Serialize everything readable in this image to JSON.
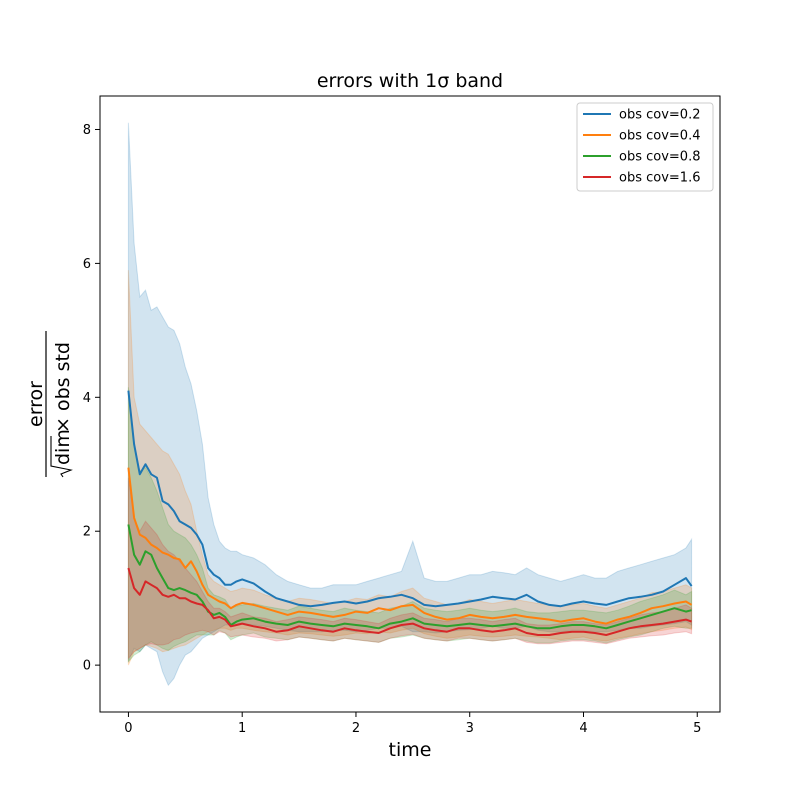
{
  "chart_data": {
    "type": "line",
    "title": "errors with 1σ band",
    "xlabel": "time",
    "ylabel": {
      "numerator": "error",
      "denominator_root": "dim",
      "denominator_rest": "× obs std"
    },
    "xlim": [
      -0.25,
      5.2
    ],
    "ylim": [
      -0.7,
      8.5
    ],
    "xticks": [
      0,
      1,
      2,
      3,
      4,
      5
    ],
    "yticks": [
      0,
      2,
      4,
      6,
      8
    ],
    "grid": false,
    "legend": "top-right",
    "x": [
      0.0,
      0.05,
      0.1,
      0.15,
      0.2,
      0.25,
      0.3,
      0.35,
      0.4,
      0.45,
      0.5,
      0.55,
      0.6,
      0.65,
      0.7,
      0.75,
      0.8,
      0.85,
      0.9,
      0.95,
      1.0,
      1.1,
      1.2,
      1.3,
      1.4,
      1.5,
      1.6,
      1.7,
      1.8,
      1.9,
      2.0,
      2.1,
      2.2,
      2.3,
      2.4,
      2.5,
      2.6,
      2.7,
      2.8,
      2.9,
      3.0,
      3.1,
      3.2,
      3.3,
      3.4,
      3.5,
      3.6,
      3.7,
      3.8,
      3.9,
      4.0,
      4.1,
      4.2,
      4.3,
      4.4,
      4.5,
      4.6,
      4.7,
      4.8,
      4.9,
      4.95
    ],
    "series": [
      {
        "name": "obs cov=0.2",
        "color": "#1f77b4",
        "values": [
          4.1,
          3.3,
          2.85,
          3.0,
          2.85,
          2.8,
          2.45,
          2.4,
          2.3,
          2.15,
          2.1,
          2.05,
          1.95,
          1.8,
          1.45,
          1.35,
          1.3,
          1.2,
          1.2,
          1.25,
          1.28,
          1.22,
          1.1,
          1.0,
          0.95,
          0.9,
          0.88,
          0.9,
          0.93,
          0.95,
          0.92,
          0.95,
          1.0,
          1.02,
          1.05,
          1.0,
          0.9,
          0.88,
          0.9,
          0.92,
          0.95,
          0.98,
          1.02,
          1.0,
          0.98,
          1.05,
          0.95,
          0.9,
          0.88,
          0.92,
          0.95,
          0.92,
          0.9,
          0.95,
          1.0,
          1.02,
          1.05,
          1.1,
          1.2,
          1.3,
          1.18
        ],
        "upper": [
          8.1,
          6.3,
          5.5,
          5.6,
          5.3,
          5.35,
          5.2,
          5.05,
          5.0,
          4.8,
          4.45,
          4.2,
          3.8,
          3.3,
          2.5,
          2.1,
          1.85,
          1.75,
          1.7,
          1.7,
          1.65,
          1.6,
          1.5,
          1.35,
          1.25,
          1.2,
          1.15,
          1.15,
          1.2,
          1.2,
          1.2,
          1.25,
          1.3,
          1.35,
          1.4,
          1.85,
          1.3,
          1.25,
          1.25,
          1.3,
          1.35,
          1.35,
          1.4,
          1.38,
          1.35,
          1.45,
          1.35,
          1.3,
          1.25,
          1.3,
          1.35,
          1.3,
          1.3,
          1.4,
          1.45,
          1.5,
          1.55,
          1.6,
          1.65,
          1.75,
          1.88
        ],
        "lower": [
          0.05,
          0.25,
          0.2,
          0.3,
          0.25,
          0.2,
          -0.1,
          -0.3,
          -0.2,
          0.0,
          0.15,
          0.2,
          0.3,
          0.4,
          0.45,
          0.5,
          0.55,
          0.6,
          0.6,
          0.62,
          0.62,
          0.6,
          0.58,
          0.55,
          0.52,
          0.5,
          0.5,
          0.5,
          0.52,
          0.52,
          0.5,
          0.52,
          0.55,
          0.55,
          0.58,
          0.5,
          0.5,
          0.48,
          0.5,
          0.52,
          0.53,
          0.55,
          0.58,
          0.55,
          0.55,
          0.58,
          0.52,
          0.5,
          0.5,
          0.52,
          0.52,
          0.5,
          0.5,
          0.52,
          0.55,
          0.55,
          0.58,
          0.6,
          0.62,
          0.65,
          0.6
        ]
      },
      {
        "name": "obs cov=0.4",
        "color": "#ff7f0e",
        "values": [
          2.95,
          2.2,
          1.95,
          1.9,
          1.8,
          1.75,
          1.68,
          1.65,
          1.6,
          1.58,
          1.45,
          1.55,
          1.4,
          1.2,
          1.05,
          1.0,
          0.95,
          0.92,
          0.85,
          0.9,
          0.93,
          0.9,
          0.85,
          0.8,
          0.75,
          0.8,
          0.78,
          0.75,
          0.72,
          0.75,
          0.8,
          0.78,
          0.85,
          0.82,
          0.88,
          0.9,
          0.78,
          0.72,
          0.68,
          0.7,
          0.75,
          0.72,
          0.7,
          0.72,
          0.75,
          0.72,
          0.7,
          0.68,
          0.65,
          0.68,
          0.7,
          0.65,
          0.62,
          0.68,
          0.72,
          0.78,
          0.85,
          0.88,
          0.92,
          0.95,
          0.9
        ],
        "upper": [
          5.9,
          4.0,
          3.6,
          3.5,
          3.4,
          3.3,
          3.2,
          3.15,
          3.0,
          2.85,
          2.6,
          2.4,
          2.0,
          1.65,
          1.35,
          1.25,
          1.2,
          1.15,
          1.1,
          1.12,
          1.15,
          1.12,
          1.05,
          1.0,
          0.95,
          1.0,
          0.98,
          0.95,
          0.92,
          0.95,
          1.0,
          0.98,
          1.05,
          1.02,
          1.1,
          1.15,
          1.0,
          0.95,
          0.9,
          0.92,
          0.98,
          0.95,
          0.92,
          0.95,
          0.98,
          0.95,
          0.92,
          0.9,
          0.88,
          0.9,
          0.92,
          0.88,
          0.85,
          0.9,
          0.95,
          1.0,
          1.08,
          1.1,
          1.15,
          1.2,
          1.15
        ],
        "lower": [
          0.0,
          0.2,
          0.25,
          0.3,
          0.28,
          0.25,
          0.2,
          0.22,
          0.25,
          0.28,
          0.3,
          0.35,
          0.4,
          0.45,
          0.5,
          0.52,
          0.55,
          0.55,
          0.52,
          0.55,
          0.55,
          0.52,
          0.5,
          0.48,
          0.45,
          0.48,
          0.47,
          0.45,
          0.43,
          0.45,
          0.48,
          0.47,
          0.5,
          0.48,
          0.52,
          0.55,
          0.47,
          0.43,
          0.4,
          0.42,
          0.45,
          0.43,
          0.42,
          0.43,
          0.45,
          0.43,
          0.42,
          0.4,
          0.38,
          0.4,
          0.42,
          0.38,
          0.36,
          0.4,
          0.43,
          0.47,
          0.5,
          0.52,
          0.55,
          0.57,
          0.53
        ]
      },
      {
        "name": "obs cov=0.8",
        "color": "#2ca02c",
        "values": [
          2.1,
          1.65,
          1.5,
          1.7,
          1.65,
          1.45,
          1.3,
          1.15,
          1.12,
          1.15,
          1.12,
          1.08,
          1.05,
          0.95,
          0.8,
          0.75,
          0.78,
          0.72,
          0.6,
          0.65,
          0.68,
          0.7,
          0.65,
          0.62,
          0.6,
          0.65,
          0.62,
          0.6,
          0.58,
          0.62,
          0.6,
          0.58,
          0.55,
          0.62,
          0.65,
          0.7,
          0.62,
          0.6,
          0.58,
          0.6,
          0.62,
          0.6,
          0.58,
          0.6,
          0.62,
          0.58,
          0.55,
          0.55,
          0.58,
          0.6,
          0.6,
          0.58,
          0.55,
          0.6,
          0.65,
          0.7,
          0.75,
          0.8,
          0.85,
          0.8,
          0.82
        ],
        "upper": [
          4.15,
          3.3,
          2.9,
          2.95,
          2.8,
          2.6,
          2.35,
          2.1,
          2.0,
          1.95,
          1.9,
          1.8,
          1.65,
          1.45,
          1.15,
          1.05,
          1.02,
          0.98,
          0.85,
          0.88,
          0.9,
          0.92,
          0.88,
          0.85,
          0.82,
          0.88,
          0.85,
          0.82,
          0.8,
          0.85,
          0.82,
          0.8,
          0.78,
          0.85,
          0.88,
          0.95,
          0.85,
          0.82,
          0.8,
          0.82,
          0.85,
          0.82,
          0.8,
          0.82,
          0.85,
          0.8,
          0.78,
          0.78,
          0.8,
          0.82,
          0.82,
          0.8,
          0.78,
          0.82,
          0.88,
          0.95,
          1.0,
          1.05,
          1.12,
          1.05,
          1.1
        ],
        "lower": [
          0.05,
          0.15,
          0.2,
          0.3,
          0.35,
          0.3,
          0.25,
          0.22,
          0.28,
          0.32,
          0.35,
          0.4,
          0.45,
          0.45,
          0.45,
          0.45,
          0.52,
          0.48,
          0.38,
          0.42,
          0.45,
          0.48,
          0.42,
          0.4,
          0.38,
          0.42,
          0.4,
          0.38,
          0.36,
          0.4,
          0.38,
          0.36,
          0.34,
          0.4,
          0.42,
          0.45,
          0.4,
          0.38,
          0.36,
          0.38,
          0.4,
          0.38,
          0.36,
          0.38,
          0.4,
          0.36,
          0.33,
          0.33,
          0.36,
          0.38,
          0.38,
          0.36,
          0.33,
          0.38,
          0.42,
          0.45,
          0.5,
          0.55,
          0.58,
          0.55,
          0.55
        ]
      },
      {
        "name": "obs cov=1.6",
        "color": "#d62728",
        "values": [
          1.45,
          1.15,
          1.05,
          1.25,
          1.2,
          1.15,
          1.05,
          1.02,
          1.05,
          1.0,
          1.0,
          0.95,
          0.92,
          0.9,
          0.82,
          0.7,
          0.72,
          0.68,
          0.58,
          0.6,
          0.62,
          0.58,
          0.55,
          0.5,
          0.52,
          0.58,
          0.55,
          0.52,
          0.5,
          0.55,
          0.52,
          0.5,
          0.48,
          0.55,
          0.6,
          0.62,
          0.55,
          0.52,
          0.5,
          0.55,
          0.55,
          0.52,
          0.5,
          0.52,
          0.55,
          0.48,
          0.45,
          0.45,
          0.48,
          0.5,
          0.5,
          0.48,
          0.45,
          0.5,
          0.55,
          0.58,
          0.6,
          0.62,
          0.65,
          0.68,
          0.65
        ],
        "upper": [
          2.8,
          2.2,
          2.0,
          2.15,
          2.05,
          1.95,
          1.8,
          1.7,
          1.65,
          1.55,
          1.45,
          1.35,
          1.25,
          1.1,
          0.95,
          0.85,
          0.85,
          0.8,
          0.72,
          0.75,
          0.78,
          0.72,
          0.7,
          0.65,
          0.68,
          0.72,
          0.7,
          0.68,
          0.65,
          0.7,
          0.68,
          0.65,
          0.62,
          0.7,
          0.75,
          0.78,
          0.7,
          0.68,
          0.65,
          0.7,
          0.7,
          0.68,
          0.65,
          0.68,
          0.7,
          0.62,
          0.6,
          0.6,
          0.62,
          0.65,
          0.65,
          0.62,
          0.6,
          0.65,
          0.7,
          0.75,
          0.78,
          0.8,
          0.85,
          0.9,
          0.85
        ],
        "lower": [
          0.1,
          0.2,
          0.25,
          0.3,
          0.32,
          0.3,
          0.3,
          0.32,
          0.38,
          0.4,
          0.45,
          0.48,
          0.5,
          0.52,
          0.5,
          0.45,
          0.5,
          0.48,
          0.42,
          0.44,
          0.45,
          0.42,
          0.4,
          0.36,
          0.38,
          0.42,
          0.4,
          0.38,
          0.36,
          0.4,
          0.38,
          0.36,
          0.34,
          0.4,
          0.44,
          0.46,
          0.4,
          0.38,
          0.36,
          0.4,
          0.4,
          0.38,
          0.36,
          0.38,
          0.4,
          0.34,
          0.32,
          0.32,
          0.34,
          0.36,
          0.36,
          0.34,
          0.32,
          0.36,
          0.4,
          0.42,
          0.44,
          0.45,
          0.48,
          0.5,
          0.47
        ]
      }
    ]
  }
}
